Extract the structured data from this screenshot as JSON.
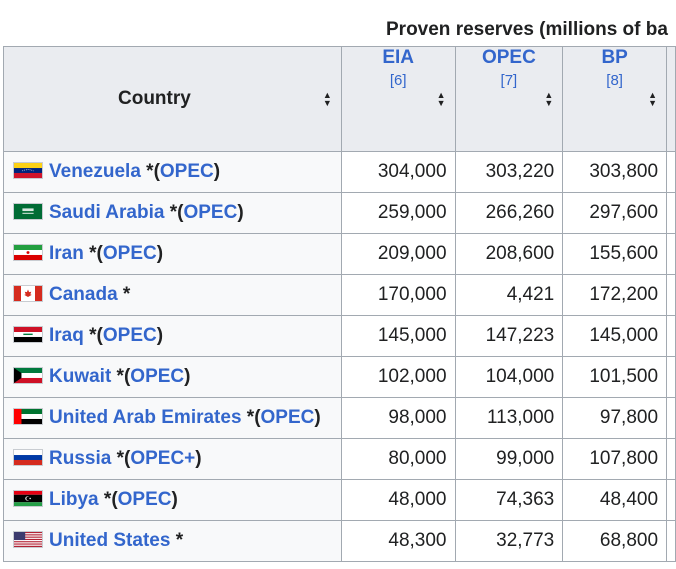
{
  "caption": "Proven reserves (millions of ba",
  "headers": {
    "country": "Country",
    "eia": {
      "label": "EIA",
      "ref": "[6]"
    },
    "opec": {
      "label": "OPEC",
      "ref": "[7]"
    },
    "bp": {
      "label": "BP",
      "ref": "[8]"
    }
  },
  "rows": [
    {
      "country": "Venezuela",
      "star": " *",
      "open": "(",
      "org": "OPEC",
      "close": ")",
      "eia": "304,000",
      "opec": "303,220",
      "bp": "303,800",
      "flag_icon": "venezuela-flag-icon"
    },
    {
      "country": "Saudi Arabia",
      "star": " *",
      "open": "(",
      "org": "OPEC",
      "close": ")",
      "eia": "259,000",
      "opec": "266,260",
      "bp": "297,600",
      "flag_icon": "saudi-arabia-flag-icon"
    },
    {
      "country": "Iran",
      "star": " *",
      "open": "(",
      "org": "OPEC",
      "close": ")",
      "eia": "209,000",
      "opec": "208,600",
      "bp": "155,600",
      "flag_icon": "iran-flag-icon"
    },
    {
      "country": "Canada",
      "star": " *",
      "open": "",
      "org": "",
      "close": "",
      "eia": "170,000",
      "opec": "4,421",
      "bp": "172,200",
      "flag_icon": "canada-flag-icon"
    },
    {
      "country": "Iraq",
      "star": " *",
      "open": "(",
      "org": "OPEC",
      "close": ")",
      "eia": "145,000",
      "opec": "147,223",
      "bp": "145,000",
      "flag_icon": "iraq-flag-icon"
    },
    {
      "country": "Kuwait",
      "star": " *",
      "open": "(",
      "org": "OPEC",
      "close": ")",
      "eia": "102,000",
      "opec": "104,000",
      "bp": "101,500",
      "flag_icon": "kuwait-flag-icon"
    },
    {
      "country": "United Arab Emirates",
      "star": " *",
      "open": "(",
      "org": "OPEC",
      "close": ")",
      "eia": "98,000",
      "opec": "113,000",
      "bp": "97,800",
      "flag_icon": "uae-flag-icon"
    },
    {
      "country": "Russia",
      "star": " *",
      "open": "(",
      "org": "OPEC+",
      "close": ")",
      "eia": "80,000",
      "opec": "99,000",
      "bp": "107,800",
      "flag_icon": "russia-flag-icon"
    },
    {
      "country": "Libya",
      "star": " *",
      "open": "(",
      "org": "OPEC",
      "close": ")",
      "eia": "48,000",
      "opec": "74,363",
      "bp": "48,400",
      "flag_icon": "libya-flag-icon"
    },
    {
      "country": "United States",
      "star": " *",
      "open": "",
      "org": "",
      "close": "",
      "eia": "48,300",
      "opec": "32,773",
      "bp": "68,800",
      "flag_icon": "united-states-flag-icon"
    }
  ],
  "colors": {
    "link": "#3366cc",
    "header_bg": "#eaecf0",
    "border": "#a2a9b1",
    "country_cell_bg": "#f8f9fa"
  }
}
